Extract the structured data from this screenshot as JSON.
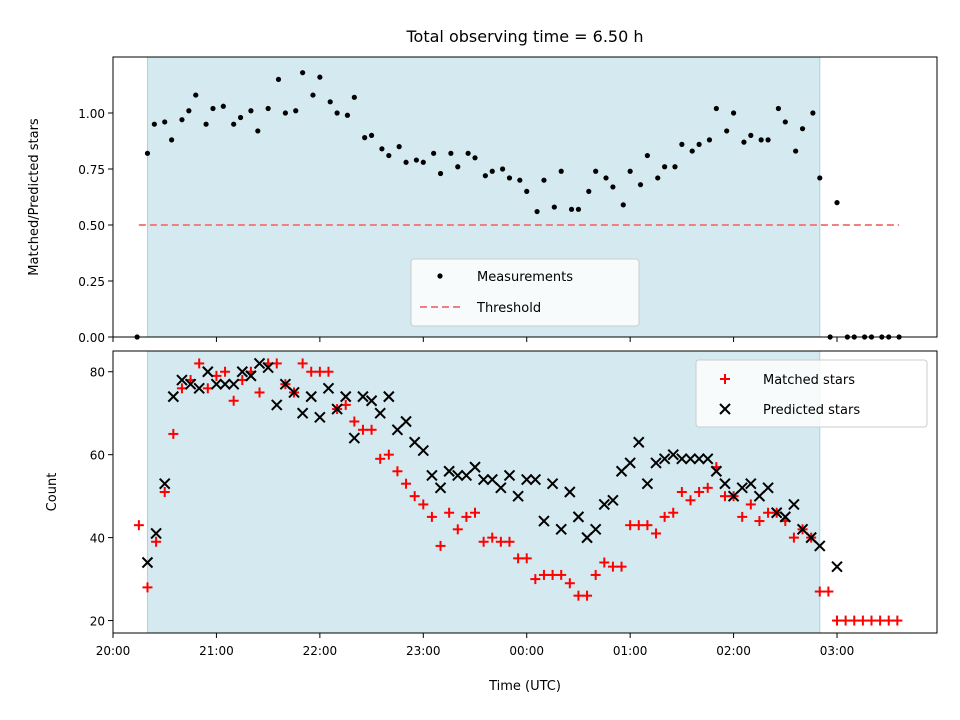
{
  "chart_data": [
    {
      "type": "scatter",
      "title": "Total observing time = 6.50 h",
      "xlabel": "",
      "ylabel": "Matched/Predicted stars",
      "xlim": [
        "20:00",
        "03:58"
      ],
      "ylim": [
        0,
        1.25
      ],
      "y_ticks": [
        "0.00",
        "0.25",
        "0.50",
        "0.75",
        "1.00"
      ],
      "grid": false,
      "legend_position": "lower-center",
      "observing_window": [
        "20:20",
        "02:50"
      ],
      "series": [
        {
          "name": "Measurements",
          "color": "#000000",
          "marker": "dot",
          "points": [
            [
              "20:14",
              0.0
            ],
            [
              "20:20",
              0.82
            ],
            [
              "20:24",
              0.95
            ],
            [
              "20:30",
              0.96
            ],
            [
              "20:34",
              0.88
            ],
            [
              "20:40",
              0.97
            ],
            [
              "20:44",
              1.01
            ],
            [
              "20:48",
              1.08
            ],
            [
              "20:54",
              0.95
            ],
            [
              "20:58",
              1.02
            ],
            [
              "21:04",
              1.03
            ],
            [
              "21:10",
              0.95
            ],
            [
              "21:14",
              0.98
            ],
            [
              "21:20",
              1.01
            ],
            [
              "21:24",
              0.92
            ],
            [
              "21:30",
              1.02
            ],
            [
              "21:36",
              1.15
            ],
            [
              "21:40",
              1.0
            ],
            [
              "21:46",
              1.01
            ],
            [
              "21:50",
              1.18
            ],
            [
              "21:56",
              1.08
            ],
            [
              "22:00",
              1.16
            ],
            [
              "22:06",
              1.05
            ],
            [
              "22:10",
              1.0
            ],
            [
              "22:16",
              0.99
            ],
            [
              "22:20",
              1.07
            ],
            [
              "22:26",
              0.89
            ],
            [
              "22:30",
              0.9
            ],
            [
              "22:36",
              0.84
            ],
            [
              "22:40",
              0.81
            ],
            [
              "22:46",
              0.85
            ],
            [
              "22:50",
              0.78
            ],
            [
              "22:56",
              0.79
            ],
            [
              "23:00",
              0.78
            ],
            [
              "23:06",
              0.82
            ],
            [
              "23:10",
              0.73
            ],
            [
              "23:16",
              0.82
            ],
            [
              "23:20",
              0.76
            ],
            [
              "23:26",
              0.82
            ],
            [
              "23:30",
              0.8
            ],
            [
              "23:36",
              0.72
            ],
            [
              "23:40",
              0.74
            ],
            [
              "23:46",
              0.75
            ],
            [
              "23:50",
              0.71
            ],
            [
              "23:56",
              0.7
            ],
            [
              "00:00",
              0.65
            ],
            [
              "00:06",
              0.56
            ],
            [
              "00:10",
              0.7
            ],
            [
              "00:16",
              0.58
            ],
            [
              "00:20",
              0.74
            ],
            [
              "00:26",
              0.57
            ],
            [
              "00:30",
              0.57
            ],
            [
              "00:36",
              0.65
            ],
            [
              "00:40",
              0.74
            ],
            [
              "00:46",
              0.71
            ],
            [
              "00:50",
              0.67
            ],
            [
              "00:56",
              0.59
            ],
            [
              "01:00",
              0.74
            ],
            [
              "01:06",
              0.68
            ],
            [
              "01:10",
              0.81
            ],
            [
              "01:16",
              0.71
            ],
            [
              "01:20",
              0.76
            ],
            [
              "01:26",
              0.76
            ],
            [
              "01:30",
              0.86
            ],
            [
              "01:36",
              0.83
            ],
            [
              "01:40",
              0.86
            ],
            [
              "01:46",
              0.88
            ],
            [
              "01:50",
              1.02
            ],
            [
              "01:56",
              0.92
            ],
            [
              "02:00",
              1.0
            ],
            [
              "02:06",
              0.87
            ],
            [
              "02:10",
              0.9
            ],
            [
              "02:16",
              0.88
            ],
            [
              "02:20",
              0.88
            ],
            [
              "02:26",
              1.02
            ],
            [
              "02:30",
              0.96
            ],
            [
              "02:36",
              0.83
            ],
            [
              "02:40",
              0.93
            ],
            [
              "02:46",
              1.0
            ],
            [
              "02:50",
              0.71
            ],
            [
              "03:00",
              0.6
            ],
            [
              "02:56",
              0.0
            ],
            [
              "03:06",
              0.0
            ],
            [
              "03:10",
              0.0
            ],
            [
              "03:16",
              0.0
            ],
            [
              "03:20",
              0.0
            ],
            [
              "03:26",
              0.0
            ],
            [
              "03:30",
              0.0
            ],
            [
              "03:36",
              0.0
            ]
          ]
        },
        {
          "name": "Threshold",
          "color": "#f08080",
          "style": "dashed",
          "points": [
            [
              "20:15",
              0.5
            ],
            [
              "03:36",
              0.5
            ]
          ]
        }
      ]
    },
    {
      "type": "scatter",
      "title": "",
      "xlabel": "Time (UTC)",
      "ylabel": "Count",
      "xlim": [
        "20:00",
        "03:58"
      ],
      "ylim": [
        17,
        85
      ],
      "x_ticks": [
        "20:00",
        "21:00",
        "22:00",
        "23:00",
        "00:00",
        "01:00",
        "02:00",
        "03:00"
      ],
      "y_ticks": [
        "20",
        "40",
        "60",
        "80"
      ],
      "grid": false,
      "legend_position": "top-right",
      "observing_window": [
        "20:20",
        "02:50"
      ],
      "series": [
        {
          "name": "Matched stars",
          "color": "#ff0000",
          "marker": "plus",
          "points": [
            [
              "20:15",
              43
            ],
            [
              "20:20",
              28
            ],
            [
              "20:25",
              39
            ],
            [
              "20:30",
              51
            ],
            [
              "20:35",
              65
            ],
            [
              "20:40",
              76
            ],
            [
              "20:45",
              78
            ],
            [
              "20:50",
              82
            ],
            [
              "20:55",
              76
            ],
            [
              "21:00",
              79
            ],
            [
              "21:05",
              80
            ],
            [
              "21:10",
              73
            ],
            [
              "21:15",
              78
            ],
            [
              "21:20",
              80
            ],
            [
              "21:25",
              75
            ],
            [
              "21:30",
              82
            ],
            [
              "21:35",
              82
            ],
            [
              "21:40",
              77
            ],
            [
              "21:45",
              75
            ],
            [
              "21:50",
              82
            ],
            [
              "21:55",
              80
            ],
            [
              "22:00",
              80
            ],
            [
              "22:05",
              80
            ],
            [
              "22:10",
              71
            ],
            [
              "22:15",
              72
            ],
            [
              "22:20",
              68
            ],
            [
              "22:25",
              66
            ],
            [
              "22:30",
              66
            ],
            [
              "22:35",
              59
            ],
            [
              "22:40",
              60
            ],
            [
              "22:45",
              56
            ],
            [
              "22:50",
              53
            ],
            [
              "22:55",
              50
            ],
            [
              "23:00",
              48
            ],
            [
              "23:05",
              45
            ],
            [
              "23:10",
              38
            ],
            [
              "23:15",
              46
            ],
            [
              "23:20",
              42
            ],
            [
              "23:25",
              45
            ],
            [
              "23:30",
              46
            ],
            [
              "23:35",
              39
            ],
            [
              "23:40",
              40
            ],
            [
              "23:45",
              39
            ],
            [
              "23:50",
              39
            ],
            [
              "23:55",
              35
            ],
            [
              "00:00",
              35
            ],
            [
              "00:05",
              30
            ],
            [
              "00:10",
              31
            ],
            [
              "00:15",
              31
            ],
            [
              "00:20",
              31
            ],
            [
              "00:25",
              29
            ],
            [
              "00:30",
              26
            ],
            [
              "00:35",
              26
            ],
            [
              "00:40",
              31
            ],
            [
              "00:45",
              34
            ],
            [
              "00:50",
              33
            ],
            [
              "00:55",
              33
            ],
            [
              "01:00",
              43
            ],
            [
              "01:05",
              43
            ],
            [
              "01:10",
              43
            ],
            [
              "01:15",
              41
            ],
            [
              "01:20",
              45
            ],
            [
              "01:25",
              46
            ],
            [
              "01:30",
              51
            ],
            [
              "01:35",
              49
            ],
            [
              "01:40",
              51
            ],
            [
              "01:45",
              52
            ],
            [
              "01:50",
              57
            ],
            [
              "01:55",
              50
            ],
            [
              "02:00",
              50
            ],
            [
              "02:05",
              45
            ],
            [
              "02:10",
              48
            ],
            [
              "02:15",
              44
            ],
            [
              "02:20",
              46
            ],
            [
              "02:25",
              46
            ],
            [
              "02:30",
              44
            ],
            [
              "02:35",
              40
            ],
            [
              "02:40",
              42
            ],
            [
              "02:45",
              40
            ],
            [
              "02:50",
              27
            ],
            [
              "02:55",
              27
            ],
            [
              "03:00",
              20
            ],
            [
              "03:05",
              20
            ],
            [
              "03:10",
              20
            ],
            [
              "03:15",
              20
            ],
            [
              "03:20",
              20
            ],
            [
              "03:25",
              20
            ],
            [
              "03:30",
              20
            ],
            [
              "03:35",
              20
            ]
          ]
        },
        {
          "name": "Predicted stars",
          "color": "#000000",
          "marker": "x",
          "points": [
            [
              "20:20",
              34
            ],
            [
              "20:25",
              41
            ],
            [
              "20:30",
              53
            ],
            [
              "20:35",
              74
            ],
            [
              "20:40",
              78
            ],
            [
              "20:45",
              77
            ],
            [
              "20:50",
              76
            ],
            [
              "20:55",
              80
            ],
            [
              "21:00",
              77
            ],
            [
              "21:05",
              77
            ],
            [
              "21:10",
              77
            ],
            [
              "21:15",
              80
            ],
            [
              "21:20",
              79
            ],
            [
              "21:25",
              82
            ],
            [
              "21:30",
              81
            ],
            [
              "21:35",
              72
            ],
            [
              "21:40",
              77
            ],
            [
              "21:45",
              75
            ],
            [
              "21:50",
              70
            ],
            [
              "21:55",
              74
            ],
            [
              "22:00",
              69
            ],
            [
              "22:05",
              76
            ],
            [
              "22:10",
              71
            ],
            [
              "22:15",
              74
            ],
            [
              "22:20",
              64
            ],
            [
              "22:25",
              74
            ],
            [
              "22:30",
              73
            ],
            [
              "22:35",
              70
            ],
            [
              "22:40",
              74
            ],
            [
              "22:45",
              66
            ],
            [
              "22:50",
              68
            ],
            [
              "22:55",
              63
            ],
            [
              "23:00",
              61
            ],
            [
              "23:05",
              55
            ],
            [
              "23:10",
              52
            ],
            [
              "23:15",
              56
            ],
            [
              "23:20",
              55
            ],
            [
              "23:25",
              55
            ],
            [
              "23:30",
              57
            ],
            [
              "23:35",
              54
            ],
            [
              "23:40",
              54
            ],
            [
              "23:45",
              52
            ],
            [
              "23:50",
              55
            ],
            [
              "23:55",
              50
            ],
            [
              "00:00",
              54
            ],
            [
              "00:05",
              54
            ],
            [
              "00:10",
              44
            ],
            [
              "00:15",
              53
            ],
            [
              "00:20",
              42
            ],
            [
              "00:25",
              51
            ],
            [
              "00:30",
              45
            ],
            [
              "00:35",
              40
            ],
            [
              "00:40",
              42
            ],
            [
              "00:45",
              48
            ],
            [
              "00:50",
              49
            ],
            [
              "00:55",
              56
            ],
            [
              "01:00",
              58
            ],
            [
              "01:05",
              63
            ],
            [
              "01:10",
              53
            ],
            [
              "01:15",
              58
            ],
            [
              "01:20",
              59
            ],
            [
              "01:25",
              60
            ],
            [
              "01:30",
              59
            ],
            [
              "01:35",
              59
            ],
            [
              "01:40",
              59
            ],
            [
              "01:45",
              59
            ],
            [
              "01:50",
              56
            ],
            [
              "01:55",
              53
            ],
            [
              "02:00",
              50
            ],
            [
              "02:05",
              52
            ],
            [
              "02:10",
              53
            ],
            [
              "02:15",
              50
            ],
            [
              "02:20",
              52
            ],
            [
              "02:25",
              46
            ],
            [
              "02:30",
              45
            ],
            [
              "02:35",
              48
            ],
            [
              "02:40",
              42
            ],
            [
              "02:45",
              40
            ],
            [
              "02:50",
              38
            ],
            [
              "03:00",
              33
            ]
          ]
        }
      ]
    }
  ],
  "colors": {
    "observing_window": "#d4eaf0",
    "observing_window_edge": "#a8d4de"
  }
}
